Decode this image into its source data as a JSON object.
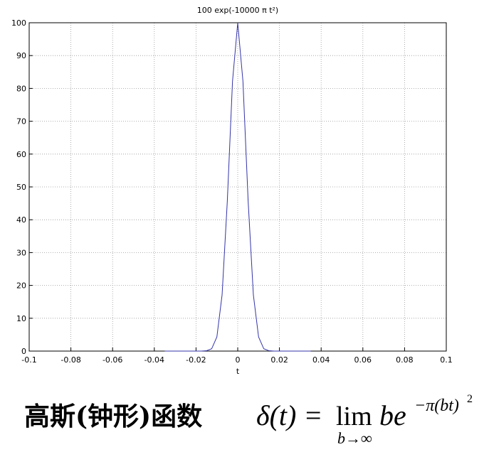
{
  "chart_data": {
    "type": "line",
    "title": "100 exp(-10000 π t²)",
    "xlabel": "t",
    "x": [
      -0.035,
      -0.0325,
      -0.03,
      -0.0275,
      -0.025,
      -0.0225,
      -0.02,
      -0.0175,
      -0.015,
      -0.0125,
      -0.01,
      -0.0075,
      -0.005,
      -0.0025,
      0,
      0.0025,
      0.005,
      0.0075,
      0.01,
      0.0125,
      0.015,
      0.0175,
      0.02,
      0.0225,
      0.025,
      0.0275,
      0.03,
      0.0325,
      0.035
    ],
    "series": [
      {
        "color": "#3333aa",
        "values": [
          0,
          0,
          0,
          0,
          0,
          0,
          0,
          0,
          0.1,
          0.7,
          4.3,
          17.1,
          45.6,
          82.2,
          100,
          82.2,
          45.6,
          17.1,
          4.3,
          0.7,
          0.1,
          0,
          0,
          0,
          0,
          0,
          0,
          0,
          0
        ]
      }
    ],
    "xlim": [
      -0.1,
      0.1
    ],
    "xticks": [
      -0.1,
      -0.08,
      -0.06,
      -0.04,
      -0.02,
      0,
      0.02,
      0.04,
      0.06,
      0.08,
      0.1
    ],
    "ylim": [
      0,
      100
    ],
    "yticks": [
      0,
      10,
      20,
      30,
      40,
      50,
      60,
      70,
      80,
      90,
      100
    ],
    "grid": true
  },
  "caption": {
    "label": "高斯(钟形)函数",
    "formula": {
      "lhs": "δ(t) =",
      "lim": "lim",
      "sub": "b→∞",
      "body": "be",
      "exp": "−π(bt)",
      "sq": "2"
    }
  }
}
